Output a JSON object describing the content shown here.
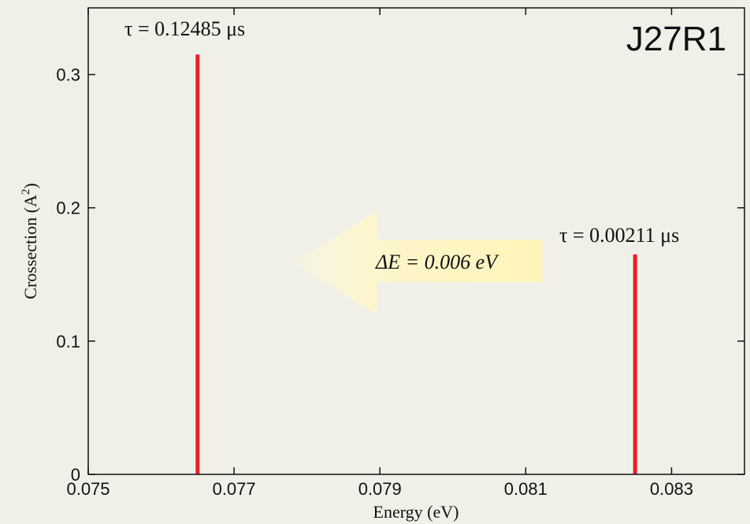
{
  "chart_data": {
    "type": "bar",
    "title": "",
    "corner_label": "J27R1",
    "xlabel": "Energy (eV)",
    "ylabel": "Crossection (A²)",
    "ylabel_main": "Crossection (A",
    "ylabel_sup": "2",
    "ylabel_close": ")",
    "xlim": [
      0.075,
      0.084
    ],
    "ylim": [
      0,
      0.35
    ],
    "xticks": [
      "0.075",
      "0.077",
      "0.079",
      "0.081",
      "0.083"
    ],
    "xtick_values": [
      0.075,
      0.077,
      0.079,
      0.081,
      0.083
    ],
    "yticks": [
      "0",
      "0.1",
      "0.2",
      "0.3"
    ],
    "ytick_values": [
      0,
      0.1,
      0.2,
      0.3
    ],
    "series": [
      {
        "x": [
          0.0765,
          0.0825
        ],
        "values": [
          0.315,
          0.165
        ]
      }
    ],
    "bar_color": "#e8202a",
    "grid": false,
    "annotations": {
      "peak1": "τ = 0.12485 μs",
      "peak2": "τ = 0.00211 μs",
      "delta": "ΔE = 0.006 eV"
    },
    "arrow_color": "#fff3b0"
  }
}
